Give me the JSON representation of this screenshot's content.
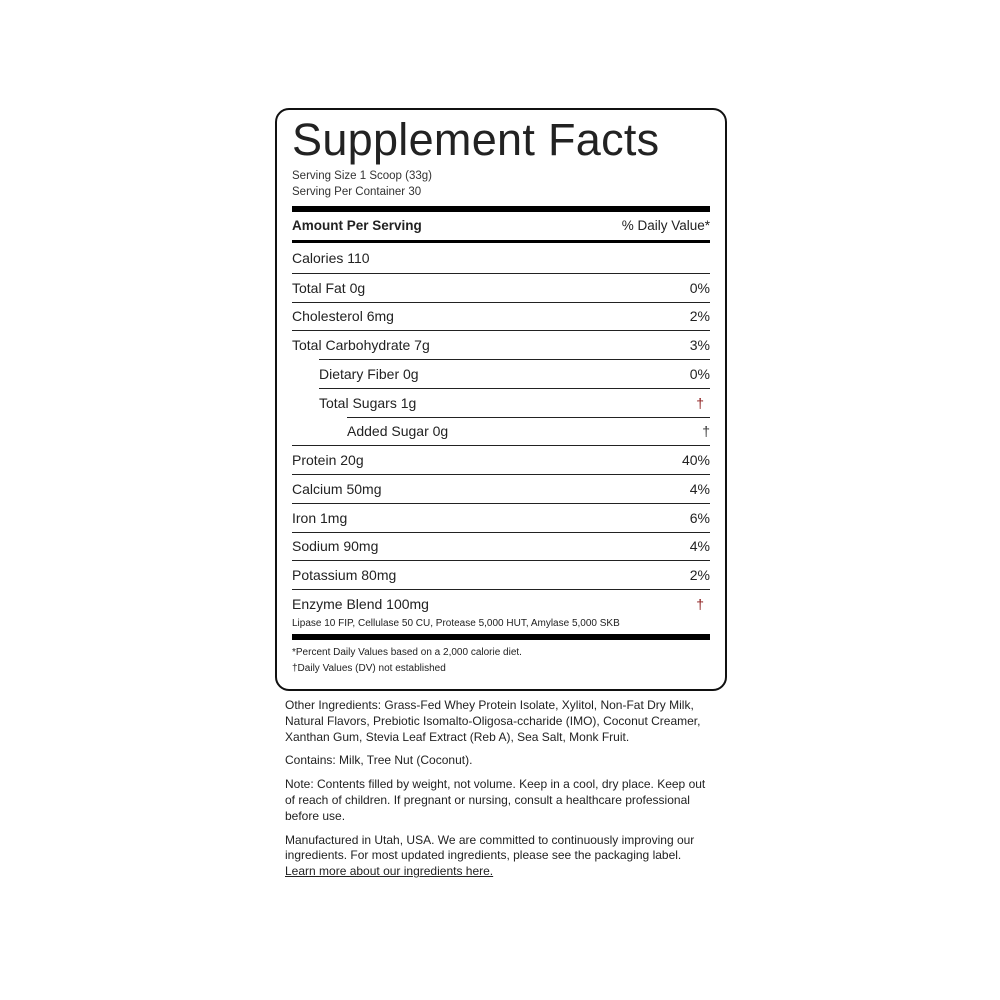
{
  "label": {
    "title": "Supplement Facts",
    "serving_size": "Serving Size 1 Scoop (33g)",
    "servings_per_container": "Serving Per Container 30",
    "header_left": "Amount Per Serving",
    "header_right": "% Daily Value*",
    "rows": [
      {
        "name": "Calories 110",
        "dv": ""
      },
      {
        "name": "Total Fat 0g",
        "dv": "0%"
      },
      {
        "name": "Cholesterol 6mg",
        "dv": "2%"
      },
      {
        "name": "Total Carbohydrate 7g",
        "dv": "3%"
      },
      {
        "name": "Dietary Fiber 0g",
        "dv": "0%"
      },
      {
        "name": "Total Sugars 1g",
        "dv": "†"
      },
      {
        "name": "Added Sugar 0g",
        "dv": "†"
      },
      {
        "name": "Protein 20g",
        "dv": "40%"
      },
      {
        "name": "Calcium 50mg",
        "dv": "4%"
      },
      {
        "name": "Iron 1mg",
        "dv": "6%"
      },
      {
        "name": "Sodium 90mg",
        "dv": "4%"
      },
      {
        "name": "Potassium 80mg",
        "dv": "2%"
      },
      {
        "name": "Enzyme Blend 100mg",
        "dv": "†"
      }
    ],
    "enzyme_detail": "Lipase 10 FIP, Cellulase 50 CU, Protease 5,000 HUT, Amylase 5,000 SKB",
    "footnote_1": "*Percent Daily Values based on a 2,000 calorie diet.",
    "footnote_2": "†Daily Values (DV) not established"
  },
  "below": {
    "other_ingredients": "Other Ingredients: Grass-Fed Whey Protein Isolate, Xylitol, Non-Fat Dry Milk, Natural Flavors, Prebiotic Isomalto-Oligosa-ccharide (IMO), Coconut Creamer, Xanthan Gum, Stevia Leaf Extract (Reb A), Sea Salt, Monk Fruit.",
    "contains": "Contains: Milk, Tree Nut (Coconut).",
    "note": "Note: Contents filled by weight, not volume. Keep in a cool, dry place. Keep out of reach of children. If pregnant or nursing, consult a healthcare professional before use.",
    "manufactured": "Manufactured in Utah, USA. We are committed to continuously improving our ingredients. For most updated ingredients, please see the packaging label.",
    "link": "Learn more about our ingredients here."
  },
  "colors": {
    "dagger": "#8b1a1a",
    "text": "#222222"
  }
}
